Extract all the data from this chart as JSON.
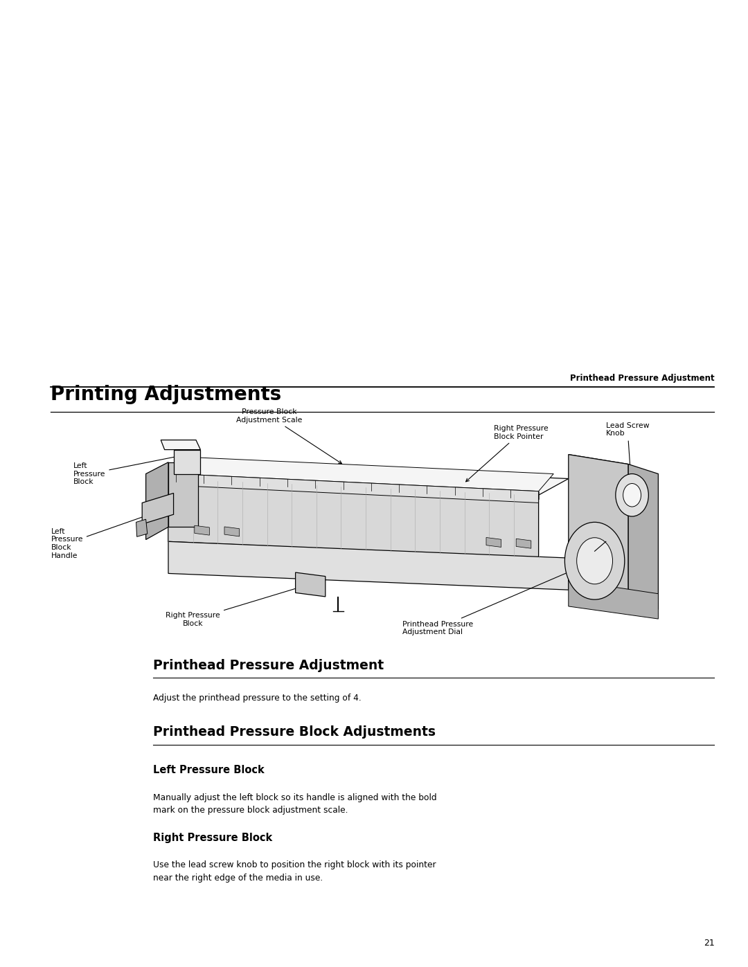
{
  "bg_color": "#ffffff",
  "page_width": 10.8,
  "page_height": 13.97,
  "header_text": "Printhead Pressure Adjustment",
  "section_title": "Printing Adjustments",
  "sub_section1_title": "Printhead Pressure Adjustment",
  "sub_section1_body": "Adjust the printhead pressure to the setting of 4.",
  "sub_section2_title": "Printhead Pressure Block Adjustments",
  "sub_section3_title": "Left Pressure Block",
  "sub_section3_body1": "Manually adjust the left block so its handle is aligned with the bold",
  "sub_section3_body2": "mark on the pressure block adjustment scale.",
  "sub_section4_title": "Right Pressure Block",
  "sub_section4_body1": "Use the lead screw knob to position the right block with its pointer",
  "sub_section4_body2": "near the right edge of the media in use.",
  "page_number": "21",
  "label_pressure_block_scale": "Pressure Block\nAdjustment Scale",
  "label_right_pressure_pointer": "Right Pressure\nBlock Pointer",
  "label_lead_screw": "Lead Screw\nKnob",
  "label_left_block": "Left\nPressure\nBlock",
  "label_left_handle": "Left\nPressure\nBlock\nHandle",
  "label_right_block": "Right Pressure\nBlock",
  "label_dial": "Printhead Pressure\nAdjustment Dial"
}
